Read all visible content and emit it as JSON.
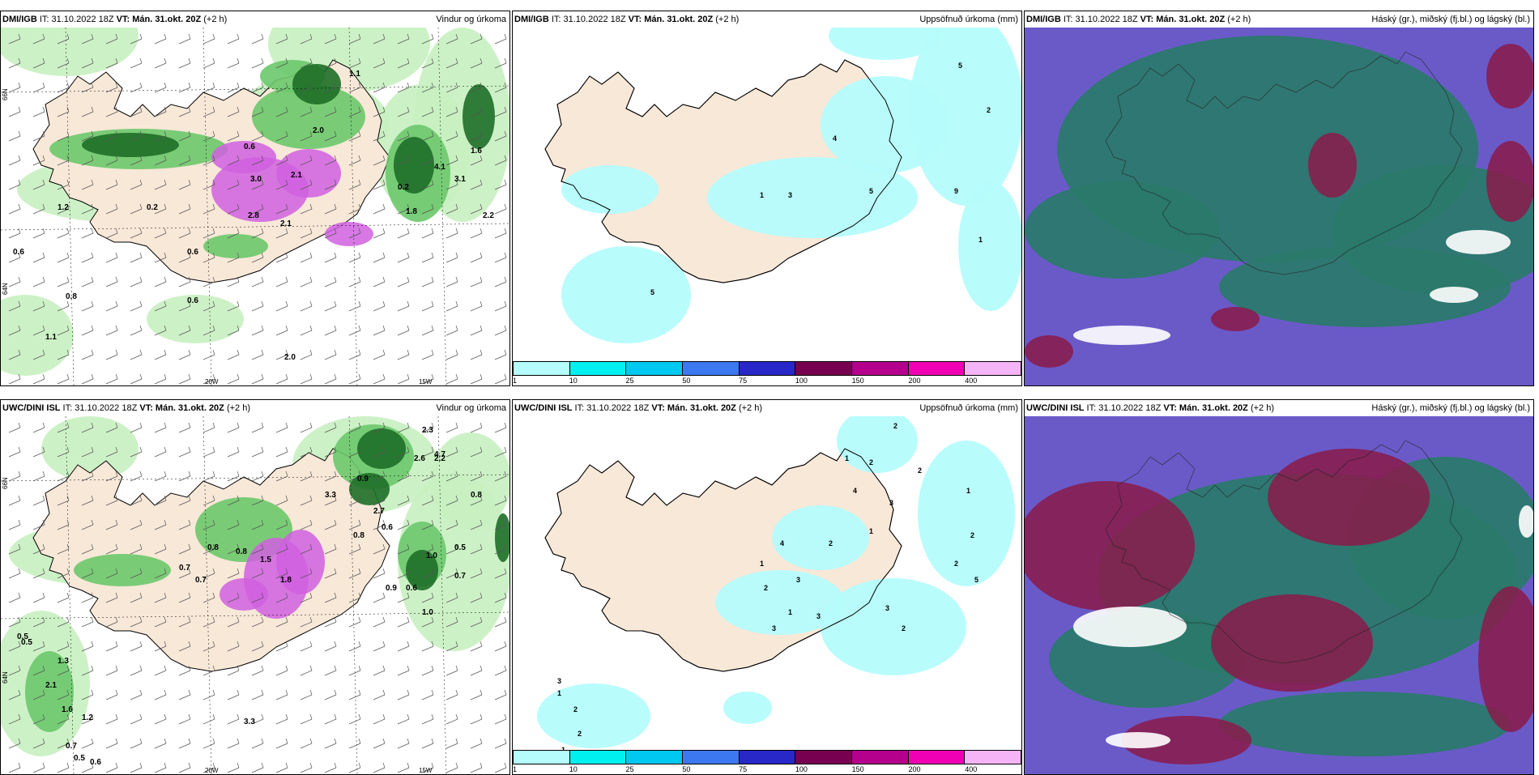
{
  "panels": [
    {
      "id": "p1",
      "model": "DMI/IGB",
      "init": " IT: 31.10.2022 18Z ",
      "vt_prefix": "VT: ",
      "vt": "Mán. 31.okt. 20Z",
      "vt_suffix": " (+2 h)",
      "title": "Vindur og úrkoma",
      "type": "wind",
      "axis_labels": [
        "66N",
        "64N",
        "20W",
        "15W"
      ],
      "values": [
        "1.1",
        "2.0",
        "0.6",
        "3.0",
        "2.1",
        "2.8",
        "2.1",
        "0.6",
        "0.2",
        "1.2",
        "0.6",
        "0.8",
        "1.1",
        "0.6",
        "4.1",
        "3.1",
        "1.6",
        "1.8",
        "2.2",
        "0.2",
        "2.0"
      ]
    },
    {
      "id": "p2",
      "model": "DMI/IGB",
      "init": " IT: 31.10.2022 18Z ",
      "vt_prefix": "VT: ",
      "vt": "Mán. 31.okt. 20Z",
      "vt_suffix": " (+2 h)",
      "title": "Uppsöfnuð úrkoma (mm)",
      "type": "accum",
      "values": [
        "5",
        "2",
        "4",
        "9",
        "5",
        "3",
        "1",
        "5",
        "1"
      ]
    },
    {
      "id": "p3",
      "model": "DMI/IGB",
      "init": " IT: 31.10.2022 18Z ",
      "vt_prefix": "VT: ",
      "vt": "Mán. 31.okt. 20Z",
      "vt_suffix": " (+2 h)",
      "title": "Háský (gr.), miðský (fj.bl.) og lágský (bl.)",
      "type": "cloud"
    },
    {
      "id": "p4",
      "model": "UWC/DINI ISL",
      "init": " IT: 31.10.2022 18Z ",
      "vt_prefix": "VT: ",
      "vt": "Mán. 31.okt. 20Z",
      "vt_suffix": " (+2 h)",
      "title": "Vindur og úrkoma",
      "type": "wind",
      "axis_labels": [
        "66N",
        "64N",
        "20W",
        "15W"
      ],
      "values": [
        "2.3",
        "2.2",
        "2.6",
        "4.7",
        "0.9",
        "2.7",
        "0.6",
        "0.8",
        "3.3",
        "0.8",
        "0.8",
        "0.8",
        "1.5",
        "0.7",
        "0.7",
        "1.8",
        "0.5",
        "1.0",
        "0.7",
        "0.9",
        "0.6",
        "1.0",
        "0.5",
        "0.5",
        "1.3",
        "2.1",
        "1.6",
        "1.2",
        "0.7",
        "0.5",
        "0.6",
        "3.3"
      ]
    },
    {
      "id": "p5",
      "model": "UWC/DINI ISL",
      "init": " IT: 31.10.2022 18Z ",
      "vt_prefix": "VT: ",
      "vt": "Mán. 31.okt. 20Z",
      "vt_suffix": " (+2 h)",
      "title": "Uppsöfnuð úrkoma (mm)",
      "type": "accum",
      "values": [
        "2",
        "1",
        "2",
        "4",
        "3",
        "2",
        "1",
        "2",
        "4",
        "1",
        "3",
        "2",
        "1",
        "3",
        "3",
        "3",
        "2",
        "2",
        "2",
        "5",
        "1",
        "2",
        "2",
        "1",
        "3",
        "1"
      ]
    },
    {
      "id": "p6",
      "model": "UWC/DINI ISL",
      "init": " IT: 31.10.2022 18Z ",
      "vt_prefix": "VT: ",
      "vt": "Mán. 31.okt. 20Z",
      "vt_suffix": " (+2 h)",
      "title": "Háský (gr.), miðský (fj.bl.) og lágský (bl.)",
      "type": "cloud"
    }
  ],
  "colorbar": {
    "colors": [
      "#b5fcfc",
      "#00f0f0",
      "#00c8f0",
      "#3c78f0",
      "#2828c8",
      "#780050",
      "#b4008c",
      "#f000b4",
      "#f5b4f5"
    ],
    "ticks": [
      "1",
      "10",
      "25",
      "50",
      "75",
      "100",
      "150",
      "200",
      "400"
    ]
  },
  "colors": {
    "land": "#f8e8d8",
    "green_light": "#c8f0c0",
    "green_mid": "#6cc86c",
    "green_dark": "#1e6e28",
    "magenta": "#d060e0",
    "cyan_light": "#b5fcfc",
    "cloud_high": "#2a7a6a",
    "cloud_mid": "#6a5ac8",
    "cloud_low": "#8a1a4a"
  }
}
